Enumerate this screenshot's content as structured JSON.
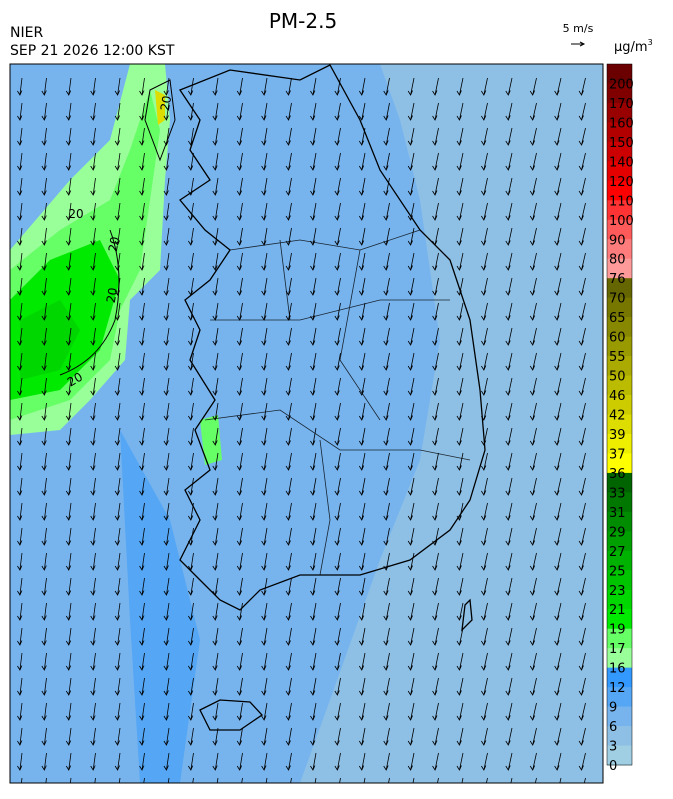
{
  "header": {
    "title": "PM-2.5",
    "agency": "NIER",
    "timestamp": "SEP 21 2026 12:00 KST",
    "wind_reference": "5 m/s"
  },
  "legend": {
    "unit": "µg/m",
    "unit_superscript": "3",
    "levels": [
      200,
      170,
      160,
      150,
      140,
      120,
      110,
      100,
      90,
      80,
      76,
      70,
      65,
      60,
      55,
      50,
      46,
      42,
      39,
      37,
      36,
      33,
      31,
      29,
      27,
      25,
      23,
      21,
      19,
      17,
      16,
      12,
      9,
      6,
      3,
      0
    ],
    "colors": [
      "#6b0000",
      "#800000",
      "#990000",
      "#b20000",
      "#cc0000",
      "#e50000",
      "#ff0000",
      "#ff3333",
      "#ff5a5a",
      "#ff7c7c",
      "#ff9a9a",
      "#666600",
      "#777700",
      "#888800",
      "#999900",
      "#aaaa00",
      "#bbbb00",
      "#cccc00",
      "#dddd00",
      "#eeee00",
      "#ffff00",
      "#006400",
      "#007800",
      "#008c00",
      "#009f00",
      "#00b200",
      "#00c400",
      "#00d600",
      "#00ea00",
      "#66ff66",
      "#99ff99",
      "#3399ff",
      "#55a6f4",
      "#77b4ee",
      "#8ec0e6",
      "#a0cee2"
    ]
  },
  "map": {
    "contour_labels": [
      "20",
      "20",
      "20",
      "20",
      "20"
    ]
  }
}
